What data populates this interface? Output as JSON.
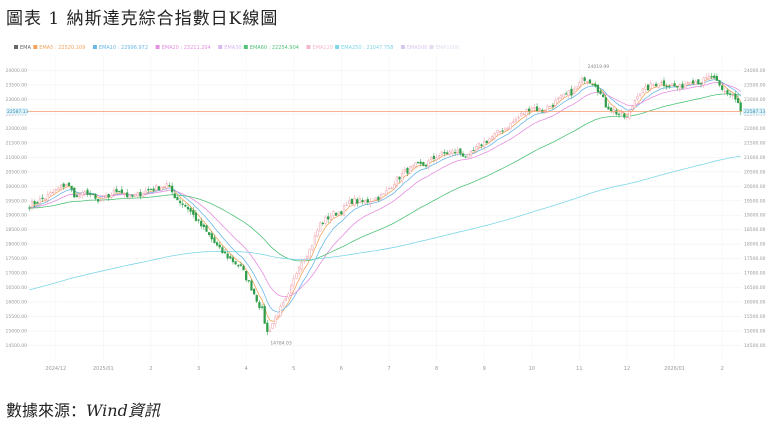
{
  "figure": {
    "title": "圖表 1 納斯達克綜合指數日K線圖",
    "source_prefix": "數據來源：",
    "source_name": "Wind資訊"
  },
  "chart_data": {
    "type": "candlestick",
    "legend": [
      {
        "label": "EMA",
        "color": "#666666"
      },
      {
        "label": "EMA5 : 22520.109",
        "color": "#f2a35c"
      },
      {
        "label": "EMA10 : 22996.972",
        "color": "#6bb7e8"
      },
      {
        "label": "EMA20 : 23211.204",
        "color": "#e58fe0"
      },
      {
        "label": "EMA30",
        "color": "#d9b8f0"
      },
      {
        "label": "EMA60 : 22254.904",
        "color": "#52c27a"
      },
      {
        "label": "EMA120",
        "color": "#f5b8c8"
      },
      {
        "label": "EMA250 : 21047.758",
        "color": "#7fd6e8"
      },
      {
        "label": "EMA500",
        "color": "#d8c8ee"
      },
      {
        "label": "EMA1000",
        "color": "#e6dcf2"
      }
    ],
    "ylim": [
      14000,
      24500
    ],
    "yticks": [
      14500,
      15000,
      15500,
      16000,
      16500,
      17000,
      17500,
      18000,
      18500,
      19000,
      19500,
      20000,
      20500,
      21000,
      21500,
      22000,
      22500,
      23000,
      23500,
      24000
    ],
    "ytick_labels": [
      "14500.00",
      "15000.00",
      "15500.00",
      "16000.00",
      "16500.00",
      "17000.00",
      "17500.00",
      "18000.00",
      "18500.00",
      "19000.00",
      "19500.00",
      "20000.00",
      "20500.00",
      "21000.00",
      "21500.00",
      "22000.00",
      "22500.00",
      "23000.00",
      "23500.00",
      "24000.00"
    ],
    "xtick_labels": [
      "2024/12",
      "2025/01",
      "2",
      "3",
      "4",
      "5",
      "6",
      "7",
      "8",
      "9",
      "10",
      "11",
      "12",
      "2026/01",
      "2"
    ],
    "xtick_positions": [
      10,
      28,
      46,
      64,
      82,
      100,
      118,
      136,
      154,
      172,
      190,
      208,
      226,
      244,
      262
    ],
    "n_days": 270,
    "current_price": 22587.13,
    "current_price_label": "22587.13",
    "annotations": [
      {
        "label": "24019.99",
        "x": 210,
        "y": 24019.99
      },
      {
        "label": "14784.03",
        "x": 90,
        "y": 14784.03
      }
    ],
    "up_color": "#f0a0a8",
    "down_color": "#2e9e4a",
    "close_path": [
      [
        0,
        19350
      ],
      [
        6,
        19600
      ],
      [
        10,
        19850
      ],
      [
        14,
        20100
      ],
      [
        18,
        19600
      ],
      [
        22,
        19800
      ],
      [
        26,
        19450
      ],
      [
        30,
        19650
      ],
      [
        34,
        19900
      ],
      [
        38,
        19600
      ],
      [
        42,
        19750
      ],
      [
        46,
        19900
      ],
      [
        52,
        20050
      ],
      [
        56,
        19550
      ],
      [
        60,
        19250
      ],
      [
        64,
        18750
      ],
      [
        68,
        18300
      ],
      [
        72,
        17800
      ],
      [
        76,
        17500
      ],
      [
        80,
        17200
      ],
      [
        84,
        16500
      ],
      [
        88,
        15700
      ],
      [
        90,
        14950
      ],
      [
        94,
        15600
      ],
      [
        98,
        16200
      ],
      [
        102,
        17300
      ],
      [
        106,
        17800
      ],
      [
        110,
        18700
      ],
      [
        114,
        19000
      ],
      [
        118,
        19150
      ],
      [
        122,
        19500
      ],
      [
        126,
        19450
      ],
      [
        130,
        19550
      ],
      [
        134,
        19700
      ],
      [
        138,
        20150
      ],
      [
        142,
        20500
      ],
      [
        146,
        20700
      ],
      [
        150,
        20750
      ],
      [
        154,
        21050
      ],
      [
        158,
        21150
      ],
      [
        162,
        21200
      ],
      [
        166,
        21000
      ],
      [
        170,
        21400
      ],
      [
        174,
        21650
      ],
      [
        178,
        21900
      ],
      [
        182,
        22150
      ],
      [
        186,
        22450
      ],
      [
        190,
        22750
      ],
      [
        194,
        22600
      ],
      [
        198,
        22850
      ],
      [
        202,
        23100
      ],
      [
        206,
        23300
      ],
      [
        210,
        23750
      ],
      [
        214,
        23550
      ],
      [
        218,
        22800
      ],
      [
        222,
        22550
      ],
      [
        226,
        22350
      ],
      [
        230,
        23200
      ],
      [
        234,
        23400
      ],
      [
        238,
        23600
      ],
      [
        242,
        23500
      ],
      [
        246,
        23400
      ],
      [
        250,
        23700
      ],
      [
        254,
        23600
      ],
      [
        258,
        23800
      ],
      [
        262,
        23300
      ],
      [
        266,
        23150
      ],
      [
        270,
        22587
      ]
    ],
    "ema_lines": [
      {
        "name": "EMA5",
        "color": "#f2a35c",
        "period": 5
      },
      {
        "name": "EMA10",
        "color": "#6bb7e8",
        "period": 10
      },
      {
        "name": "EMA20",
        "color": "#e58fe0",
        "period": 20
      },
      {
        "name": "EMA60",
        "color": "#52c27a",
        "period": 60
      },
      {
        "name": "EMA250",
        "color": "#7fd6e8",
        "period": 250,
        "seed": 16400
      }
    ]
  }
}
